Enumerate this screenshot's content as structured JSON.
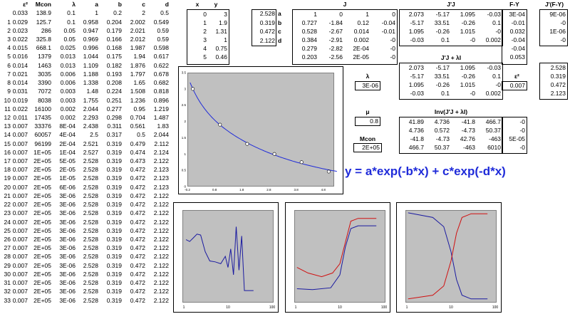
{
  "iterations": {
    "headers": [
      "",
      "ε²",
      "Mcon",
      "λ",
      "a",
      "b",
      "c",
      "d"
    ],
    "rows": [
      [
        "",
        "0.033",
        "138.9",
        "0.1",
        "1",
        "0.2",
        "2",
        "0.5"
      ],
      [
        "1",
        "0.029",
        "125.7",
        "0.1",
        "0.958",
        "0.204",
        "2.002",
        "0.549"
      ],
      [
        "2",
        "0.023",
        "286",
        "0.05",
        "0.947",
        "0.179",
        "2.021",
        "0.59"
      ],
      [
        "3",
        "0.022",
        "325.8",
        "0.05",
        "0.969",
        "0.166",
        "2.012",
        "0.59"
      ],
      [
        "4",
        "0.015",
        "668.1",
        "0.025",
        "0.996",
        "0.168",
        "1.987",
        "0.598"
      ],
      [
        "5",
        "0.016",
        "1379",
        "0.013",
        "1.044",
        "0.175",
        "1.94",
        "0.617"
      ],
      [
        "6",
        "0.014",
        "1463",
        "0.013",
        "1.109",
        "0.182",
        "1.876",
        "0.622"
      ],
      [
        "7",
        "0.021",
        "3035",
        "0.006",
        "1.188",
        "0.193",
        "1.797",
        "0.678"
      ],
      [
        "8",
        "0.014",
        "3390",
        "0.006",
        "1.338",
        "0.208",
        "1.65",
        "0.682"
      ],
      [
        "9",
        "0.031",
        "7072",
        "0.003",
        "1.48",
        "0.224",
        "1.508",
        "0.818"
      ],
      [
        "10",
        "0.019",
        "8038",
        "0.003",
        "1.755",
        "0.251",
        "1.236",
        "0.896"
      ],
      [
        "11",
        "0.022",
        "16100",
        "0.002",
        "2.044",
        "0.277",
        "0.95",
        "1.219"
      ],
      [
        "12",
        "0.011",
        "17435",
        "0.002",
        "2.293",
        "0.298",
        "0.704",
        "1.487"
      ],
      [
        "13",
        "0.007",
        "33376",
        "8E-04",
        "2.438",
        "0.311",
        "0.561",
        "1.83"
      ],
      [
        "14",
        "0.007",
        "60057",
        "4E-04",
        "2.5",
        "0.317",
        "0.5",
        "2.044"
      ],
      [
        "15",
        "0.007",
        "96199",
        "2E-04",
        "2.521",
        "0.319",
        "0.479",
        "2.112"
      ],
      [
        "16",
        "0.007",
        "1E+05",
        "1E-04",
        "2.527",
        "0.319",
        "0.474",
        "2.124"
      ],
      [
        "17",
        "0.007",
        "2E+05",
        "5E-05",
        "2.528",
        "0.319",
        "0.473",
        "2.122"
      ],
      [
        "18",
        "0.007",
        "2E+05",
        "2E-05",
        "2.528",
        "0.319",
        "0.472",
        "2.123"
      ],
      [
        "19",
        "0.007",
        "2E+05",
        "1E-05",
        "2.528",
        "0.319",
        "0.472",
        "2.123"
      ],
      [
        "20",
        "0.007",
        "2E+05",
        "6E-06",
        "2.528",
        "0.319",
        "0.472",
        "2.123"
      ],
      [
        "21",
        "0.007",
        "2E+05",
        "3E-06",
        "2.528",
        "0.319",
        "0.472",
        "2.122"
      ],
      [
        "22",
        "0.007",
        "2E+05",
        "3E-06",
        "2.528",
        "0.319",
        "0.472",
        "2.122"
      ],
      [
        "23",
        "0.007",
        "2E+05",
        "3E-06",
        "2.528",
        "0.319",
        "0.472",
        "2.122"
      ],
      [
        "24",
        "0.007",
        "2E+05",
        "3E-06",
        "2.528",
        "0.319",
        "0.472",
        "2.122"
      ],
      [
        "25",
        "0.007",
        "2E+05",
        "3E-06",
        "2.528",
        "0.319",
        "0.472",
        "2.122"
      ],
      [
        "26",
        "0.007",
        "2E+05",
        "3E-06",
        "2.528",
        "0.319",
        "0.472",
        "2.122"
      ],
      [
        "27",
        "0.007",
        "2E+05",
        "3E-06",
        "2.528",
        "0.319",
        "0.472",
        "2.122"
      ],
      [
        "28",
        "0.007",
        "2E+05",
        "3E-06",
        "2.528",
        "0.319",
        "0.472",
        "2.122"
      ],
      [
        "29",
        "0.007",
        "2E+05",
        "3E-06",
        "2.528",
        "0.319",
        "0.472",
        "2.122"
      ],
      [
        "30",
        "0.007",
        "2E+05",
        "3E-06",
        "2.528",
        "0.319",
        "0.472",
        "2.122"
      ],
      [
        "31",
        "0.007",
        "2E+05",
        "3E-06",
        "2.528",
        "0.319",
        "0.472",
        "2.122"
      ],
      [
        "32",
        "0.007",
        "2E+05",
        "3E-06",
        "2.528",
        "0.319",
        "0.472",
        "2.122"
      ],
      [
        "33",
        "0.007",
        "2E+05",
        "3E-06",
        "2.528",
        "0.319",
        "0.472",
        "2.122"
      ]
    ]
  },
  "xy": {
    "header_x": "x",
    "header_y": "y",
    "rows": [
      [
        "0",
        "3"
      ],
      [
        "1",
        "1.9"
      ],
      [
        "2",
        "1.31"
      ],
      [
        "3",
        "1"
      ],
      [
        "4",
        "0.75"
      ],
      [
        "5",
        "0.46"
      ]
    ]
  },
  "params": [
    {
      "value": "2.528",
      "name": "a"
    },
    {
      "value": "0.319",
      "name": "b"
    },
    {
      "value": "0.472",
      "name": "c"
    },
    {
      "value": "2.122",
      "name": "d"
    }
  ],
  "J": {
    "title": "J",
    "rows": [
      [
        "1",
        "0",
        "1",
        "0"
      ],
      [
        "0.727",
        "-1.84",
        "0.12",
        "-0.04"
      ],
      [
        "0.528",
        "-2.67",
        "0.014",
        "-0.01"
      ],
      [
        "0.384",
        "-2.91",
        "0.002",
        "-0"
      ],
      [
        "0.279",
        "-2.82",
        "2E-04",
        "-0"
      ],
      [
        "0.203",
        "-2.56",
        "2E-05",
        "-0"
      ]
    ]
  },
  "JtJ": {
    "title": "J'J",
    "rows": [
      [
        "2.073",
        "-5.17",
        "1.095",
        "-0.03"
      ],
      [
        "-5.17",
        "33.51",
        "-0.26",
        "0.1"
      ],
      [
        "1.095",
        "-0.26",
        "1.015",
        "-0"
      ],
      [
        "-0.03",
        "0.1",
        "-0",
        "0.002"
      ]
    ]
  },
  "FY": {
    "title": "F-Y",
    "values": [
      "3E-04",
      "-0.01",
      "0.032",
      "-0.04",
      "-0.04",
      "0.053"
    ]
  },
  "JtFY": {
    "title": "J'(F-Y)",
    "values": [
      "9E-06",
      "-0",
      "1E-06",
      "-0"
    ]
  },
  "JtJlam": {
    "title": "J'J + λI",
    "rows": [
      [
        "2.073",
        "-5.17",
        "1.095",
        "-0.03"
      ],
      [
        "-5.17",
        "33.51",
        "-0.26",
        "0.1"
      ],
      [
        "1.095",
        "-0.26",
        "1.015",
        "-0"
      ],
      [
        "-0.03",
        "0.1",
        "-0",
        "0.002"
      ]
    ]
  },
  "lambda": {
    "label": "λ",
    "value": "3E-06"
  },
  "eps": {
    "label": "ε²",
    "value": "0.007"
  },
  "new_params": [
    "2.528",
    "0.319",
    "0.472",
    "2.123"
  ],
  "mu": {
    "label": "μ",
    "value": "0.8"
  },
  "mcon": {
    "label": "Mcon",
    "value": "2E+05"
  },
  "inv": {
    "title": "Inv(J'J + λI)",
    "rows": [
      [
        "41.89",
        "4.736",
        "-41.8",
        "466.7"
      ],
      [
        "4.736",
        "0.572",
        "-4.73",
        "50.37"
      ],
      [
        "-41.8",
        "-4.73",
        "42.76",
        "-463"
      ],
      [
        "466.7",
        "50.37",
        "-463",
        "6010"
      ]
    ]
  },
  "delta": [
    "-0",
    "-0",
    "5E-05",
    "-0"
  ],
  "equation": "y = a*exp(-b*x) + c*exp(-d*x)",
  "chart_data": [
    {
      "type": "scatter",
      "x": [
        0,
        1,
        2,
        3,
        4,
        5
      ],
      "y": [
        3,
        1.9,
        1.31,
        1,
        0.75,
        0.46
      ],
      "fit": {
        "a": 2.528,
        "b": 0.319,
        "c": 0.472,
        "d": 2.122
      },
      "xlim": [
        -0.2,
        5.2
      ],
      "ylim": [
        0,
        3.5
      ],
      "xticks": [
        "-0.2",
        "0.8",
        "1.8",
        "2.8",
        "3.8",
        "4.8"
      ],
      "yticks": [
        "3.5",
        "3",
        "2.5",
        "2",
        "1.5",
        "1",
        "0.5",
        "0"
      ],
      "line_color": "#1f2bd9"
    },
    {
      "type": "line",
      "xscale": "log",
      "xticks": [
        "1",
        "10",
        "100"
      ],
      "series": [
        {
          "color": "#1a1aa0",
          "points": [
            [
              0.04,
              0.68
            ],
            [
              0.08,
              0.66
            ],
            [
              0.12,
              0.7
            ],
            [
              0.16,
              0.74
            ],
            [
              0.2,
              0.73
            ],
            [
              0.25,
              0.55
            ],
            [
              0.3,
              0.45
            ],
            [
              0.36,
              0.44
            ],
            [
              0.42,
              0.42
            ],
            [
              0.47,
              0.5
            ],
            [
              0.5,
              0.38
            ],
            [
              0.53,
              0.58
            ],
            [
              0.56,
              0.3
            ],
            [
              0.59,
              0.82
            ],
            [
              0.62,
              0.35
            ],
            [
              0.65,
              0.72
            ],
            [
              0.68,
              0.13
            ],
            [
              0.78,
              0.13
            ]
          ]
        }
      ]
    },
    {
      "type": "line",
      "xscale": "log",
      "xticks": [
        "1",
        "10",
        "100"
      ],
      "series": [
        {
          "color": "#d01010",
          "points": [
            [
              0.03,
              0.38
            ],
            [
              0.15,
              0.32
            ],
            [
              0.3,
              0.28
            ],
            [
              0.42,
              0.32
            ],
            [
              0.5,
              0.42
            ],
            [
              0.56,
              0.65
            ],
            [
              0.62,
              0.88
            ],
            [
              0.7,
              0.91
            ],
            [
              0.9,
              0.91
            ]
          ]
        },
        {
          "color": "#1a1aa0",
          "points": [
            [
              0.03,
              0.15
            ],
            [
              0.2,
              0.14
            ],
            [
              0.4,
              0.16
            ],
            [
              0.5,
              0.3
            ],
            [
              0.56,
              0.6
            ],
            [
              0.62,
              0.8
            ],
            [
              0.7,
              0.83
            ],
            [
              0.9,
              0.83
            ]
          ]
        }
      ]
    },
    {
      "type": "line",
      "xscale": "log",
      "xticks": [
        "1",
        "10",
        "100"
      ],
      "series": [
        {
          "color": "#1a1aa0",
          "points": [
            [
              0.03,
              0.97
            ],
            [
              0.3,
              0.92
            ],
            [
              0.42,
              0.82
            ],
            [
              0.5,
              0.55
            ],
            [
              0.56,
              0.25
            ],
            [
              0.62,
              0.08
            ],
            [
              0.72,
              0.04
            ],
            [
              0.9,
              0.04
            ]
          ]
        },
        {
          "color": "#d01010",
          "points": [
            [
              0.03,
              0.04
            ],
            [
              0.3,
              0.08
            ],
            [
              0.42,
              0.18
            ],
            [
              0.5,
              0.45
            ],
            [
              0.56,
              0.75
            ],
            [
              0.62,
              0.92
            ],
            [
              0.72,
              0.96
            ],
            [
              0.9,
              0.96
            ]
          ]
        }
      ]
    }
  ]
}
